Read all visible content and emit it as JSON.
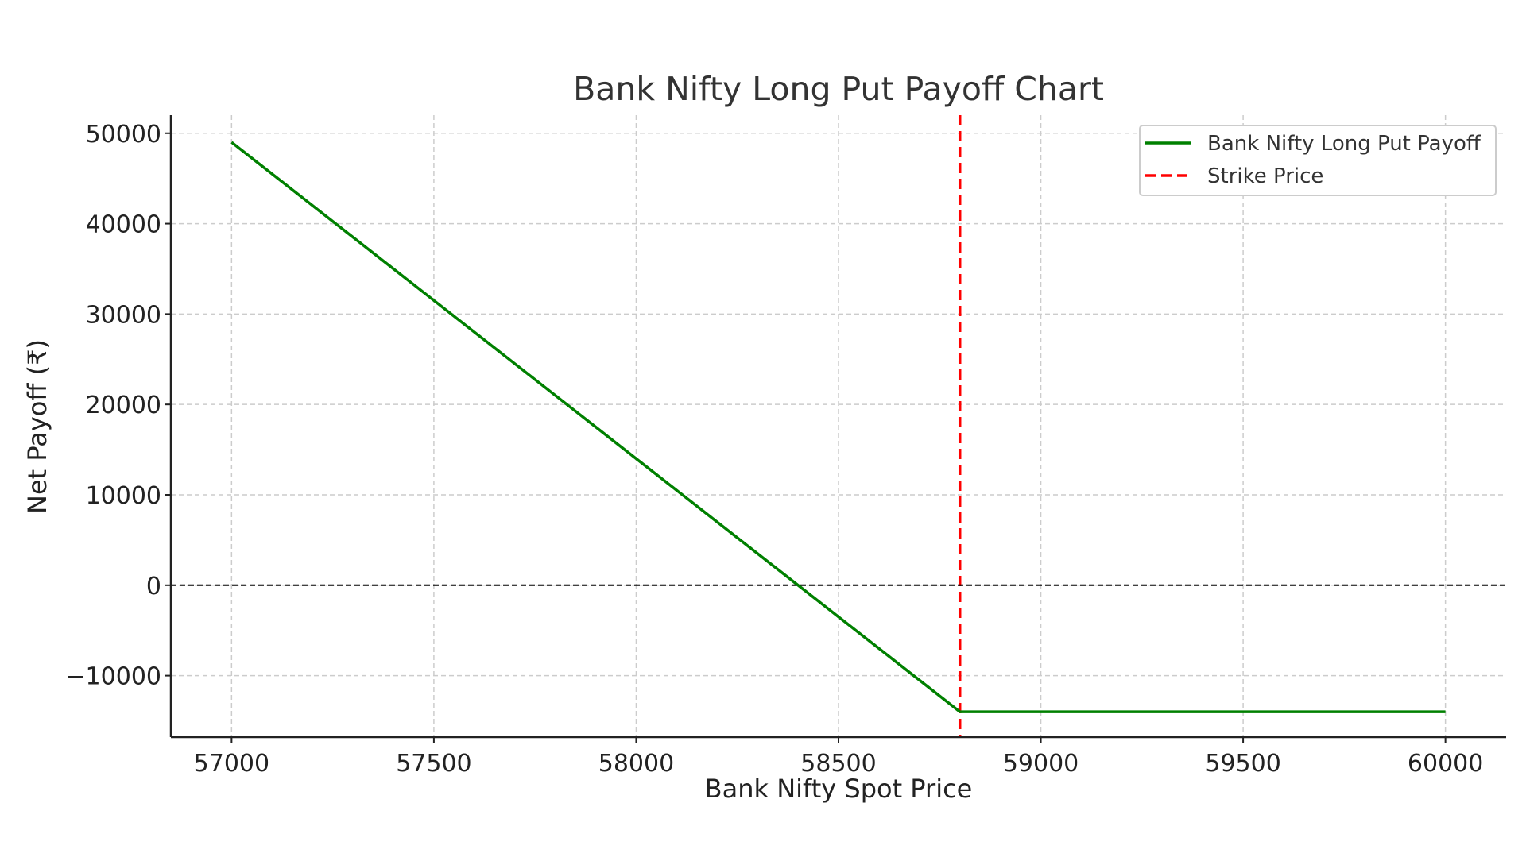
{
  "chart_data": {
    "type": "line",
    "title": "Bank Nifty Long Put Payoff Chart",
    "xlabel": "Bank Nifty Spot Price",
    "ylabel": "Net Payoff (₹)",
    "xlim": [
      56850,
      60150
    ],
    "ylim": [
      -16800,
      52000
    ],
    "xticks": [
      57000,
      57500,
      58000,
      58500,
      59000,
      59500,
      60000
    ],
    "xtick_labels": [
      "57000",
      "57500",
      "58000",
      "58500",
      "59000",
      "59500",
      "60000"
    ],
    "yticks": [
      -10000,
      0,
      10000,
      20000,
      30000,
      40000,
      50000
    ],
    "ytick_labels": [
      "−10000",
      "0",
      "10000",
      "20000",
      "30000",
      "40000",
      "50000"
    ],
    "grid": true,
    "legend_position": "top-right",
    "series": [
      {
        "name": "Bank Nifty Long Put Payoff",
        "color": "#008000",
        "style": "solid",
        "x": [
          57000,
          58800,
          60000
        ],
        "y": [
          49000,
          -14000,
          -14000
        ]
      }
    ],
    "annotations": [
      {
        "name": "Strike Price",
        "type": "vline",
        "x": 58800,
        "color": "#ff0000",
        "style": "dashed"
      },
      {
        "type": "hline",
        "y": 0,
        "color": "#000000",
        "style": "dashed"
      }
    ]
  }
}
